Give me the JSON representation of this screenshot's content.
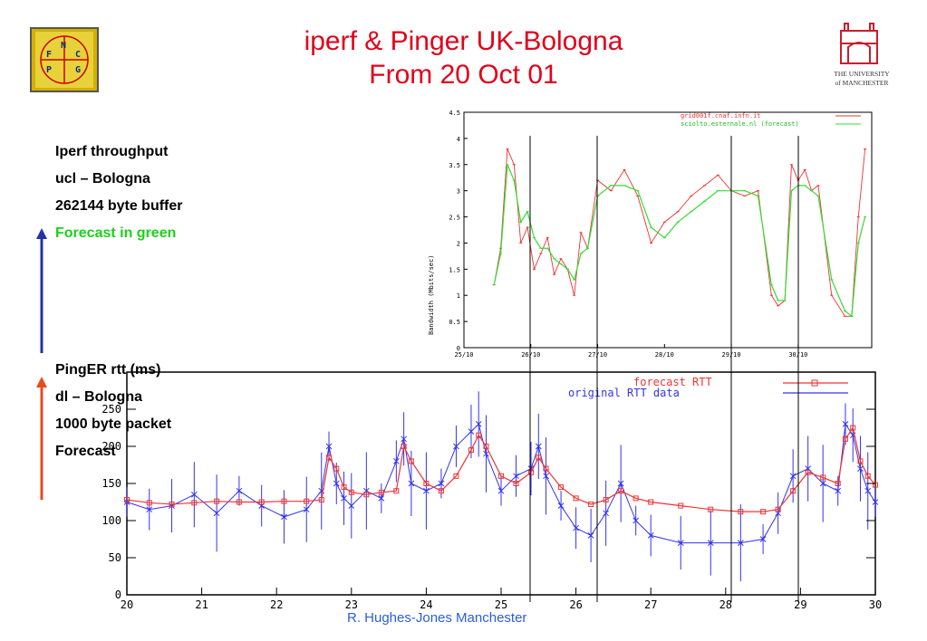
{
  "slide": {
    "title_line1": "iperf & Pinger UK-Bologna",
    "title_line2": "From 20 Oct 01",
    "notes": [
      "Iperf throughput",
      "ucl – Bologna",
      "262144 byte buffer",
      "Forecast in green",
      "PingER rtt (ms)",
      "dl – Bologna",
      "1000 byte packet",
      "Forecast"
    ],
    "footer": "R. Hughes-Jones  Manchester",
    "logo_left": [
      "N",
      "F",
      "C",
      "P",
      "G"
    ],
    "logo_right": [
      "THE UNIVERSITY",
      "of MANCHESTER"
    ]
  },
  "colors": {
    "title": "#e2001a",
    "forecast_green": "#22c422",
    "blue_arrow": "#2233aa",
    "red_arrow": "#e84a1c",
    "rtt_blue": "#3333ee",
    "rtt_red": "#ee3333",
    "bw_red": "#ee3333",
    "bw_green": "#33dd33"
  },
  "chart_data": [
    {
      "type": "line",
      "ylabel": "Bandwidth (Mbits/sec)",
      "xlim": [
        0,
        6.1
      ],
      "ylim": [
        0,
        4.5
      ],
      "xticks": [
        "25/10",
        "26/10",
        "27/10",
        "28/10",
        "29/10",
        "30/10"
      ],
      "yticks": [
        "0",
        "0.5",
        "1",
        "1.5",
        "2",
        "2.5",
        "3",
        "3.5",
        "4",
        "4.5"
      ],
      "legend": [
        "grid001f.cnaf.infn.it",
        "sciolto.esternale.nl (forecast)"
      ],
      "legend_position": "top-right",
      "series": [
        {
          "name": "grid001f.cnaf.infn.it",
          "x": [
            0.45,
            0.55,
            0.65,
            0.75,
            0.85,
            0.95,
            1.05,
            1.15,
            1.25,
            1.35,
            1.45,
            1.55,
            1.65,
            1.75,
            1.85,
            2.0,
            2.2,
            2.4,
            2.6,
            2.8,
            3.0,
            3.2,
            3.4,
            3.6,
            3.8,
            4.0,
            4.2,
            4.4,
            4.6,
            4.7,
            4.8,
            4.9,
            5.0,
            5.1,
            5.2,
            5.3,
            5.5,
            5.7,
            5.8,
            5.9,
            6.0
          ],
          "y": [
            1.2,
            1.9,
            3.8,
            3.5,
            2.0,
            2.3,
            1.5,
            1.8,
            2.1,
            1.4,
            1.7,
            1.5,
            1.0,
            2.2,
            1.9,
            3.2,
            3.0,
            3.4,
            2.9,
            2.0,
            2.4,
            2.6,
            2.9,
            3.1,
            3.3,
            3.0,
            2.9,
            3.0,
            1.0,
            0.8,
            0.9,
            3.5,
            3.2,
            3.4,
            3.0,
            3.1,
            1.0,
            0.6,
            0.6,
            2.5,
            3.8
          ]
        },
        {
          "name": "sciolto.esternale.nl (forecast)",
          "x": [
            0.45,
            0.55,
            0.65,
            0.75,
            0.85,
            0.95,
            1.05,
            1.15,
            1.25,
            1.35,
            1.45,
            1.55,
            1.65,
            1.75,
            1.85,
            2.0,
            2.2,
            2.4,
            2.6,
            2.8,
            3.0,
            3.2,
            3.4,
            3.6,
            3.8,
            4.0,
            4.2,
            4.4,
            4.6,
            4.7,
            4.8,
            4.9,
            5.0,
            5.1,
            5.2,
            5.3,
            5.5,
            5.7,
            5.8,
            5.9,
            6.0
          ],
          "y": [
            1.2,
            1.8,
            3.5,
            3.2,
            2.4,
            2.6,
            2.1,
            1.9,
            1.9,
            1.7,
            1.6,
            1.5,
            1.3,
            1.8,
            1.9,
            2.9,
            3.1,
            3.1,
            3.0,
            2.3,
            2.1,
            2.4,
            2.6,
            2.8,
            3.0,
            3.0,
            3.0,
            2.9,
            1.2,
            0.9,
            0.9,
            3.0,
            3.1,
            3.1,
            3.0,
            2.9,
            1.3,
            0.7,
            0.6,
            2.0,
            2.5
          ]
        }
      ]
    },
    {
      "type": "line",
      "xlim": [
        20,
        30
      ],
      "ylim": [
        0,
        300
      ],
      "xticks": [
        "20",
        "21",
        "22",
        "23",
        "24",
        "25",
        "26",
        "27",
        "28",
        "29",
        "30"
      ],
      "yticks": [
        "0",
        "50",
        "100",
        "150",
        "200",
        "250"
      ],
      "legend": [
        "forecast RTT",
        "original RTT data"
      ],
      "legend_position": "top-right",
      "series": [
        {
          "name": "forecast RTT",
          "x": [
            20.0,
            20.3,
            20.6,
            20.9,
            21.2,
            21.5,
            21.8,
            22.1,
            22.4,
            22.6,
            22.7,
            22.8,
            22.9,
            23.0,
            23.2,
            23.4,
            23.6,
            23.7,
            23.8,
            24.0,
            24.2,
            24.4,
            24.6,
            24.7,
            24.8,
            25.0,
            25.2,
            25.4,
            25.5,
            25.6,
            25.8,
            26.0,
            26.2,
            26.4,
            26.6,
            26.8,
            27.0,
            27.4,
            27.8,
            28.2,
            28.5,
            28.7,
            28.9,
            29.1,
            29.3,
            29.5,
            29.6,
            29.7,
            29.8,
            29.9,
            30.0
          ],
          "y": [
            128,
            124,
            122,
            124,
            126,
            125,
            125,
            126,
            126,
            128,
            185,
            170,
            145,
            138,
            135,
            138,
            140,
            200,
            180,
            150,
            140,
            160,
            195,
            215,
            200,
            160,
            150,
            165,
            185,
            170,
            145,
            130,
            122,
            128,
            140,
            130,
            125,
            120,
            115,
            112,
            112,
            115,
            140,
            165,
            158,
            150,
            210,
            225,
            180,
            160,
            148
          ]
        },
        {
          "name": "original RTT data",
          "x": [
            20.0,
            20.3,
            20.6,
            20.9,
            21.2,
            21.5,
            21.8,
            22.1,
            22.4,
            22.6,
            22.7,
            22.8,
            22.9,
            23.0,
            23.2,
            23.4,
            23.6,
            23.7,
            23.8,
            24.0,
            24.2,
            24.4,
            24.6,
            24.7,
            24.8,
            25.0,
            25.2,
            25.4,
            25.5,
            25.6,
            25.8,
            26.0,
            26.2,
            26.4,
            26.6,
            26.8,
            27.0,
            27.4,
            27.8,
            28.2,
            28.5,
            28.7,
            28.9,
            29.1,
            29.3,
            29.5,
            29.6,
            29.7,
            29.8,
            29.9,
            30.0
          ],
          "y": [
            125,
            115,
            120,
            135,
            110,
            140,
            120,
            105,
            115,
            140,
            200,
            150,
            130,
            120,
            140,
            130,
            180,
            210,
            150,
            140,
            150,
            200,
            220,
            230,
            190,
            140,
            160,
            170,
            200,
            160,
            120,
            90,
            80,
            110,
            150,
            100,
            80,
            70,
            70,
            70,
            75,
            110,
            160,
            170,
            150,
            140,
            230,
            215,
            170,
            140,
            125
          ]
        }
      ]
    }
  ]
}
